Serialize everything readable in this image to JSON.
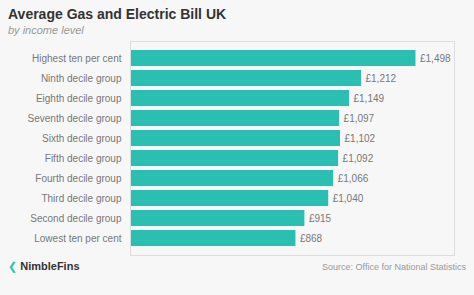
{
  "chart_data": {
    "type": "bar",
    "orientation": "horizontal",
    "title": "Average Gas and Electric Bill UK",
    "subtitle": "by income level",
    "categories": [
      "Highest ten per cent",
      "Ninth decile group",
      "Eighth decile group",
      "Seventh decile group",
      "Sixth decile group",
      "Fifth decile group",
      "Fourth decile group",
      "Third decile group",
      "Second decile group",
      "Lowest ten per cent"
    ],
    "values": [
      1498,
      1212,
      1149,
      1097,
      1102,
      1092,
      1066,
      1040,
      915,
      868
    ],
    "value_labels": [
      "£1,498",
      "£1,212",
      "£1,149",
      "£1,097",
      "£1,102",
      "£1,092",
      "£1,066",
      "£1,040",
      "£915",
      "£868"
    ],
    "data_labels": true,
    "color": "#2abfb0",
    "xlim": [
      0,
      1700
    ],
    "tick_labels": "y",
    "grid": false,
    "annotations": [
      "❮",
      "NimbleFins",
      "Source: Office for National Statistics"
    ]
  }
}
